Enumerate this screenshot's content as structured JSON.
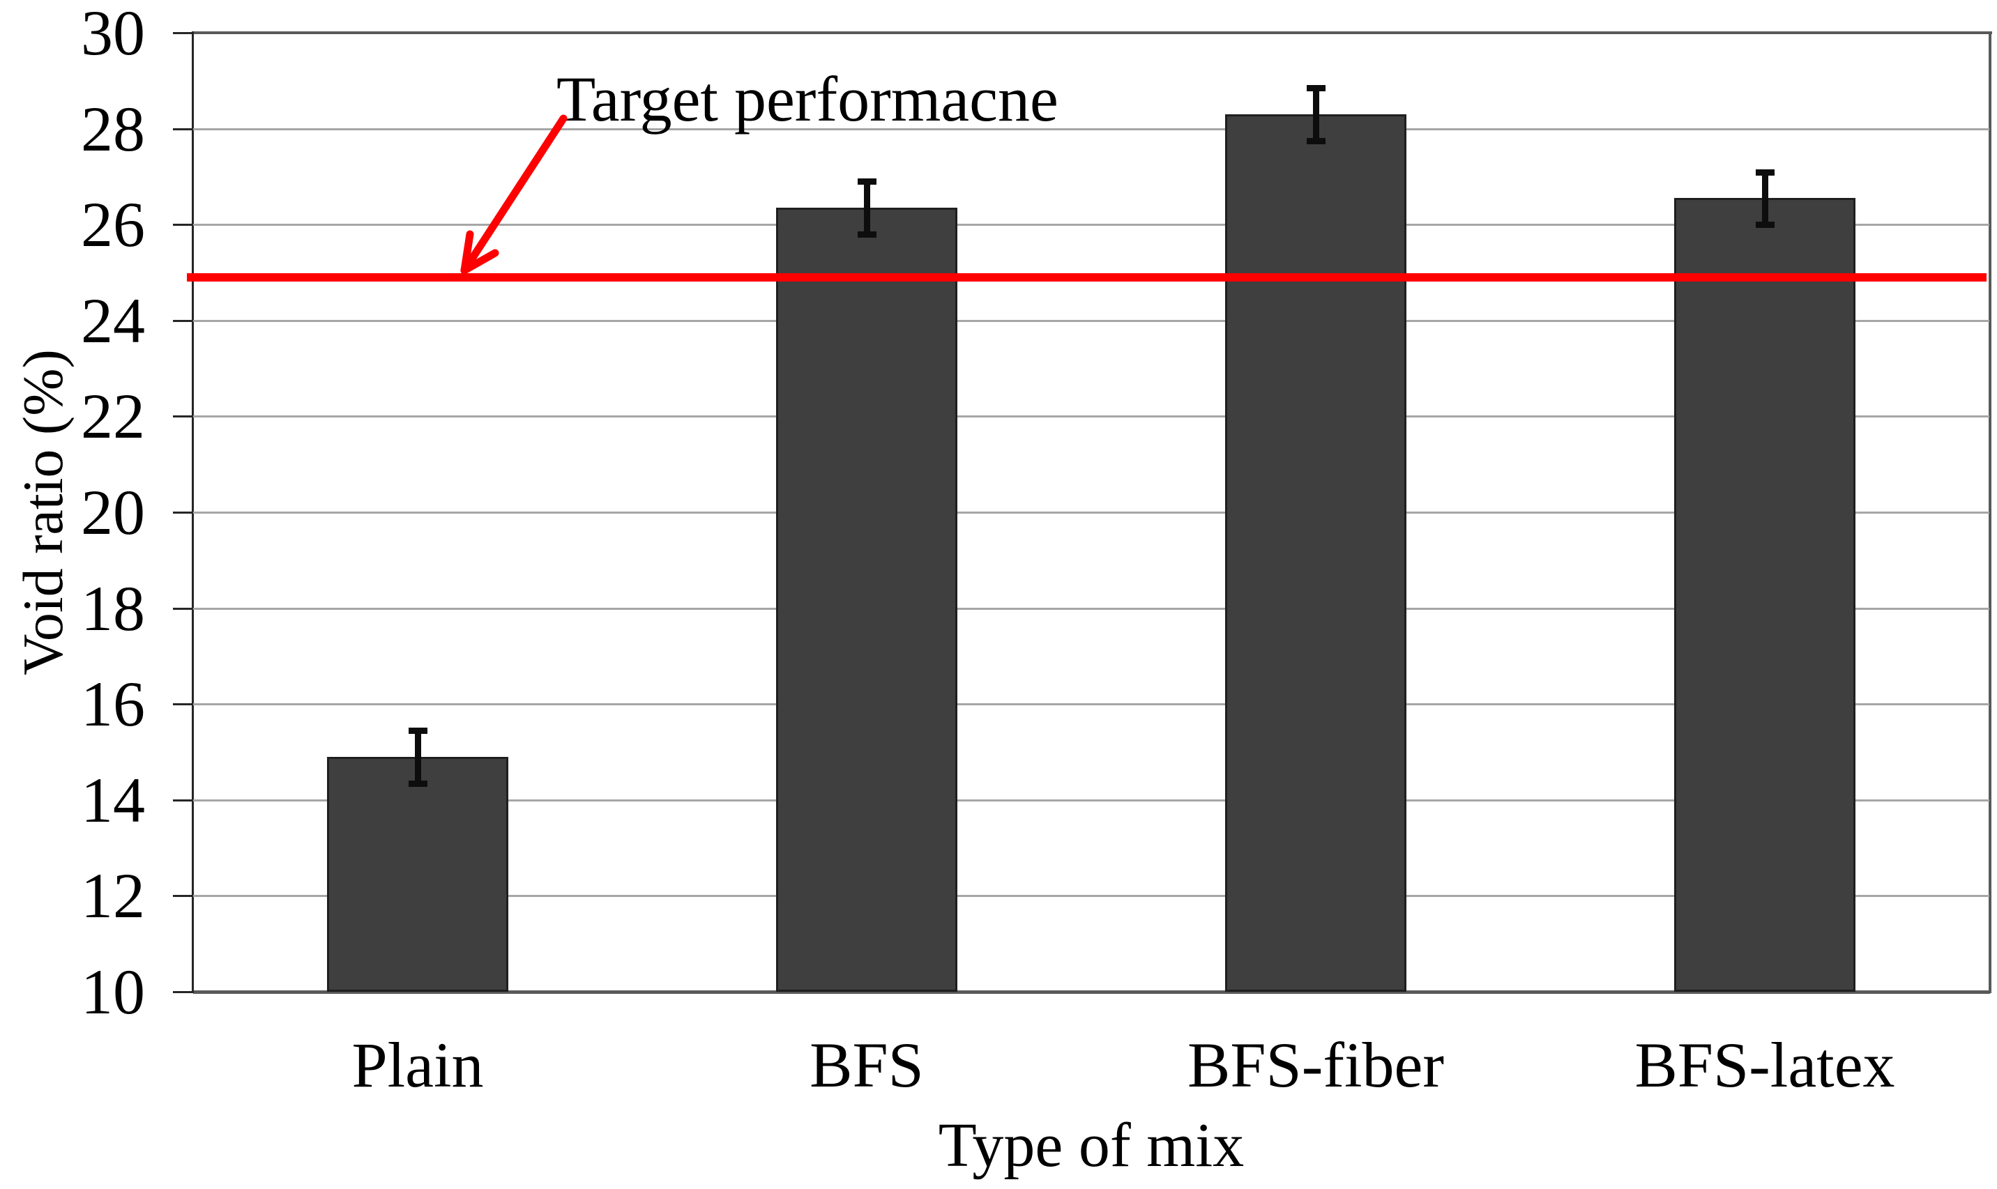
{
  "figure": {
    "ylabel": "Void ratio (%)",
    "xlabel": "Type of mix",
    "annotation": "Target performacne"
  },
  "chart_data": {
    "type": "bar",
    "title": "",
    "xlabel": "Type of mix",
    "ylabel": "Void ratio (%)",
    "categories": [
      "Plain",
      "BFS",
      "BFS-fiber",
      "BFS-latex"
    ],
    "values": [
      14.9,
      26.35,
      28.3,
      26.55
    ],
    "error_bars": [
      0.55,
      0.55,
      0.55,
      0.55
    ],
    "ylim": [
      10,
      30
    ],
    "ytick_step": 2,
    "yticks": [
      10,
      12,
      14,
      16,
      18,
      20,
      22,
      24,
      26,
      28,
      30
    ],
    "grid": "horizontal-major",
    "legend_position": "none",
    "target_line": {
      "value": 24.9,
      "label": "Target performacne",
      "color": "#fe0000"
    },
    "colors": {
      "bar_fill": "#3f3f3f",
      "bar_border": "#1f1f1f",
      "error_bar": "#0d0d0d",
      "gridline": "#a6a6a6",
      "plot_border": "#595959",
      "y_axis_line": "#262626",
      "tick": "#262626",
      "text": "#000000"
    }
  }
}
